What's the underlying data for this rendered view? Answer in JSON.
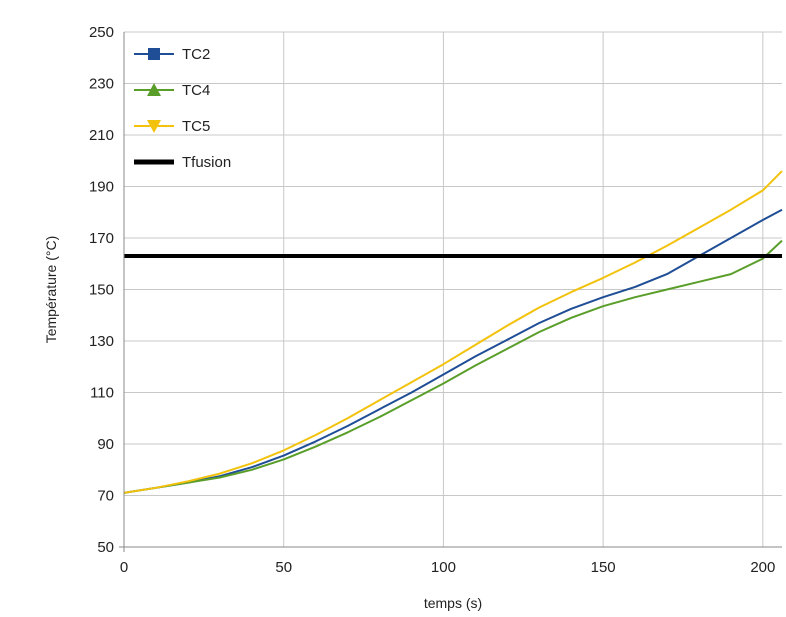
{
  "chart_data": {
    "type": "line",
    "xlabel": "temps (s)",
    "ylabel": "Température (°C)",
    "xlim": [
      0,
      206
    ],
    "ylim": [
      50,
      250
    ],
    "xticks": [
      0,
      50,
      100,
      150,
      200
    ],
    "yticks": [
      50,
      70,
      90,
      110,
      130,
      150,
      170,
      190,
      210,
      230,
      250
    ],
    "grid": true,
    "legend_position": "top-left",
    "series": [
      {
        "name": "TC2",
        "color": "#1f4e96",
        "marker": "square",
        "x": [
          0,
          10,
          20,
          30,
          40,
          50,
          60,
          70,
          80,
          90,
          100,
          110,
          120,
          130,
          140,
          150,
          160,
          170,
          180,
          190,
          200,
          206
        ],
        "y": [
          71,
          73,
          75,
          77.5,
          81,
          85.5,
          91,
          97,
          103.5,
          110,
          117,
          124,
          130.5,
          137,
          142.5,
          147,
          151,
          156,
          163,
          170,
          177,
          181
        ]
      },
      {
        "name": "TC4",
        "color": "#5a9e2a",
        "marker": "triangle-up",
        "x": [
          0,
          10,
          20,
          30,
          40,
          50,
          60,
          70,
          80,
          90,
          100,
          110,
          120,
          130,
          140,
          150,
          160,
          170,
          180,
          190,
          200,
          206
        ],
        "y": [
          71,
          73,
          75,
          77,
          80,
          84,
          89,
          94.5,
          100.5,
          107,
          113.5,
          120.5,
          127,
          133.5,
          139,
          143.5,
          147,
          150,
          153,
          156,
          162,
          169
        ]
      },
      {
        "name": "TC5",
        "color": "#f2c20c",
        "marker": "triangle-down",
        "x": [
          0,
          10,
          20,
          30,
          40,
          50,
          60,
          70,
          80,
          90,
          100,
          110,
          120,
          130,
          140,
          150,
          160,
          170,
          180,
          190,
          200,
          206
        ],
        "y": [
          71,
          73,
          75.5,
          78.5,
          82.5,
          87.5,
          93.5,
          100,
          107,
          114,
          121,
          128.5,
          136,
          143,
          149,
          154.5,
          160.5,
          167,
          174,
          181,
          188.5,
          196
        ]
      },
      {
        "name": "Tfusion",
        "color": "#000000",
        "marker": "none",
        "x": [
          0,
          206
        ],
        "y": [
          163,
          163
        ]
      }
    ]
  }
}
